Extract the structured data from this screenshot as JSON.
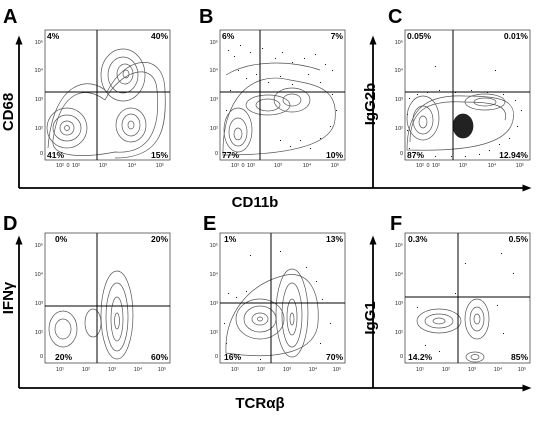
{
  "figure": {
    "shared_labels": {
      "top_x": "CD11b",
      "bottom_x": "TCRαβ"
    },
    "tick_labels": {
      "y": [
        "10⁵",
        "10⁴",
        "10³",
        "10²",
        "0"
      ],
      "x_top": [
        "10²",
        "0",
        "10²",
        "10³",
        "10⁴",
        "10⁵"
      ],
      "x_bottom": [
        "10¹",
        "10²",
        "10³",
        "10⁴",
        "10⁵"
      ]
    },
    "panels": [
      {
        "letter": "A",
        "ylabel": "CD68",
        "quadrants": {
          "ul": "4%",
          "ur": "40%",
          "ll": "41%",
          "lr": "15%"
        }
      },
      {
        "letter": "B",
        "ylabel": "",
        "quadrants": {
          "ul": "6%",
          "ur": "7%",
          "ll": "77%",
          "lr": "10%"
        }
      },
      {
        "letter": "C",
        "ylabel": "IgG2b",
        "quadrants": {
          "ul": "0.05%",
          "ur": "0.01%",
          "ll": "87%",
          "lr": "12.94%"
        }
      },
      {
        "letter": "D",
        "ylabel": "IFNγ",
        "quadrants": {
          "ul": "0%",
          "ur": "20%",
          "ll": "20%",
          "lr": "60%"
        }
      },
      {
        "letter": "E",
        "ylabel": "",
        "quadrants": {
          "ul": "1%",
          "ur": "13%",
          "ll": "16%",
          "lr": "70%"
        }
      },
      {
        "letter": "F",
        "ylabel": "IgG1",
        "quadrants": {
          "ul": "0.3%",
          "ur": "0.5%",
          "ll": "14.2%",
          "lr": "85%"
        }
      }
    ]
  },
  "colors": {
    "contour": "#555555",
    "dots": "#111111",
    "gate": "#000000"
  }
}
